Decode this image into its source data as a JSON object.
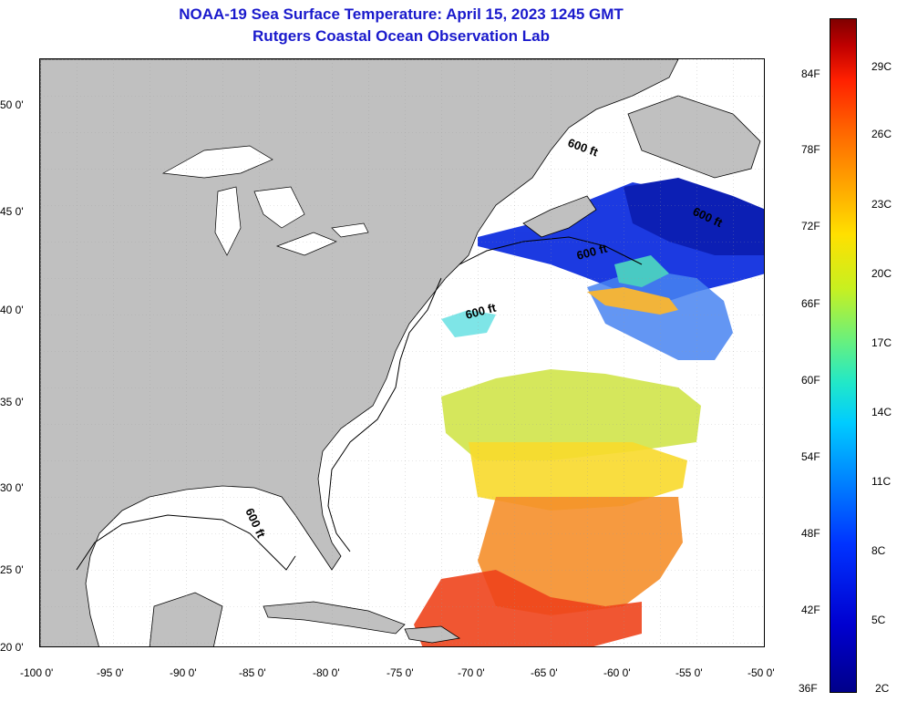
{
  "title": {
    "line1": "NOAA-19 Sea Surface Temperature:  April 15, 2023 1245 GMT",
    "line2": "Rutgers Coastal Ocean Observation Lab"
  },
  "map": {
    "lon_ticks": [
      "-100 0'",
      "-95 0'",
      "-90 0'",
      "-85 0'",
      "-80 0'",
      "-75 0'",
      "-70 0'",
      "-65 0'",
      "-60 0'",
      "-55 0'",
      "-50 0'"
    ],
    "lat_ticks": [
      "50 0'",
      "45 0'",
      "40 0'",
      "35 0'",
      "30 0'",
      "25 0'",
      "20 0'"
    ],
    "contour_labels": [
      "600 ft",
      "600 ft",
      "600 ft",
      "600 ft",
      "600 ft"
    ],
    "land_color": "#c0c0c0",
    "shelf_color": "#ffffff"
  },
  "colorbar": {
    "fahrenheit": [
      "84F",
      "78F",
      "72F",
      "66F",
      "60F",
      "54F",
      "48F",
      "42F",
      "36F"
    ],
    "celsius": [
      "29C",
      "26C",
      "23C",
      "20C",
      "17C",
      "14C",
      "11C",
      "8C",
      "5C",
      "2C"
    ]
  }
}
